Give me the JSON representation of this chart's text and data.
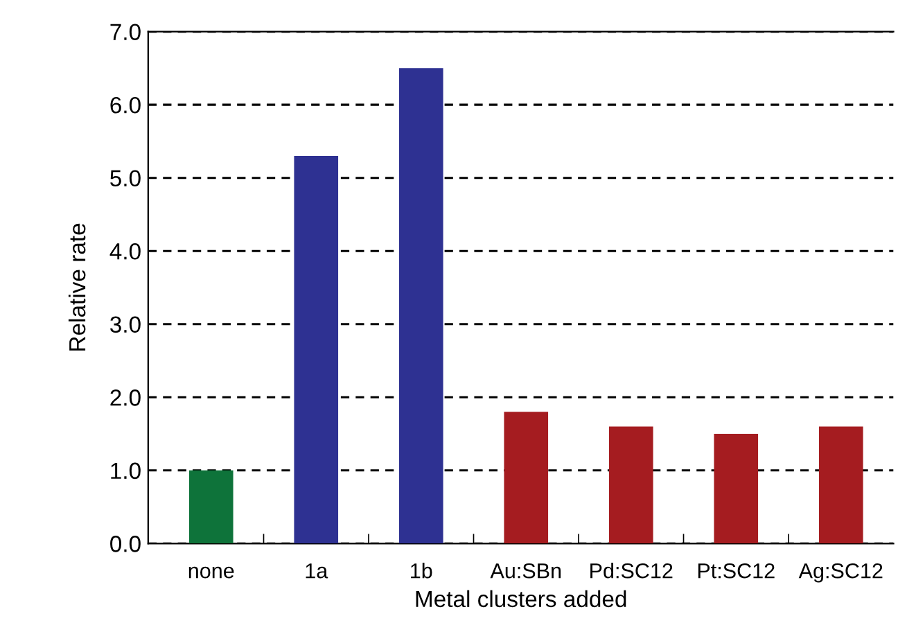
{
  "chart_data": {
    "type": "bar",
    "xlabel": "Metal clusters added",
    "ylabel": "Relative rate",
    "categories": [
      "none",
      "1a",
      "1b",
      "Au:SBn",
      "Pd:SC12",
      "Pt:SC12",
      "Ag:SC12"
    ],
    "values": [
      1.0,
      5.3,
      6.5,
      1.8,
      1.6,
      1.5,
      1.6
    ],
    "colors": [
      "#0e733a",
      "#2e3192",
      "#2e3192",
      "#a51c20",
      "#a51c20",
      "#a51c20",
      "#a51c20"
    ],
    "ylim": [
      0,
      7
    ],
    "yticks": [
      {
        "value": 0,
        "label": "0.0"
      },
      {
        "value": 1,
        "label": "1.0"
      },
      {
        "value": 2,
        "label": "2.0"
      },
      {
        "value": 3,
        "label": "3.0"
      },
      {
        "value": 4,
        "label": "4.0"
      },
      {
        "value": 5,
        "label": "5.0"
      },
      {
        "value": 6,
        "label": "6.0"
      },
      {
        "value": 7,
        "label": "7.0"
      }
    ],
    "grid": "y",
    "legend": false
  }
}
